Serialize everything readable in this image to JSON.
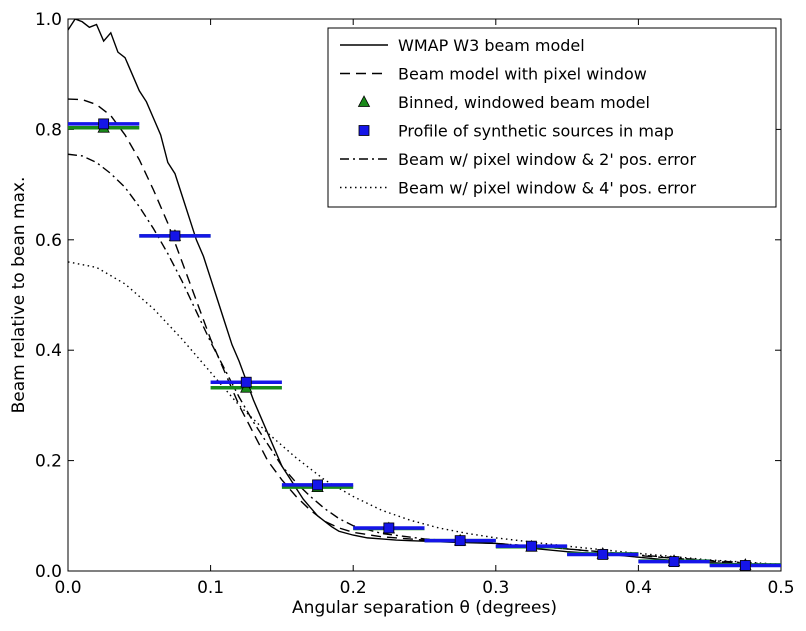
{
  "chart_data": {
    "type": "line",
    "xlabel": "Angular separation θ (degrees)",
    "ylabel": "Beam relative to bean max.",
    "xlim": [
      0.0,
      0.5
    ],
    "ylim": [
      0.0,
      1.0
    ],
    "xticks": [
      "0.0",
      "0.1",
      "0.2",
      "0.3",
      "0.4",
      "0.5"
    ],
    "yticks": [
      "0.0",
      "0.2",
      "0.4",
      "0.6",
      "0.8",
      "1.0"
    ],
    "grid": false,
    "legend_position": "top-right",
    "series": [
      {
        "name": "WMAP W3 beam model",
        "style": "solid",
        "x": [
          0,
          0.005,
          0.01,
          0.015,
          0.02,
          0.025,
          0.03,
          0.035,
          0.04,
          0.045,
          0.05,
          0.055,
          0.06,
          0.065,
          0.07,
          0.075,
          0.08,
          0.085,
          0.09,
          0.095,
          0.1,
          0.105,
          0.11,
          0.115,
          0.12,
          0.125,
          0.13,
          0.135,
          0.14,
          0.145,
          0.15,
          0.155,
          0.16,
          0.165,
          0.17,
          0.175,
          0.18,
          0.185,
          0.19,
          0.2,
          0.21,
          0.22,
          0.23,
          0.24,
          0.25,
          0.27,
          0.3,
          0.33,
          0.35,
          0.38,
          0.4,
          0.42,
          0.45,
          0.48,
          0.5
        ],
        "y": [
          0.98,
          1.0,
          0.995,
          0.985,
          0.99,
          0.96,
          0.975,
          0.94,
          0.93,
          0.9,
          0.87,
          0.85,
          0.82,
          0.79,
          0.74,
          0.72,
          0.68,
          0.64,
          0.6,
          0.57,
          0.53,
          0.49,
          0.45,
          0.41,
          0.38,
          0.345,
          0.31,
          0.28,
          0.25,
          0.22,
          0.19,
          0.17,
          0.15,
          0.13,
          0.115,
          0.1,
          0.09,
          0.08,
          0.072,
          0.065,
          0.06,
          0.058,
          0.056,
          0.055,
          0.054,
          0.052,
          0.05,
          0.04,
          0.035,
          0.03,
          0.025,
          0.02,
          0.015,
          0.012,
          0.01
        ]
      },
      {
        "name": "Beam model with pixel window",
        "style": "dashed",
        "x": [
          0,
          0.01,
          0.02,
          0.03,
          0.04,
          0.05,
          0.06,
          0.07,
          0.08,
          0.09,
          0.1,
          0.11,
          0.12,
          0.13,
          0.14,
          0.15,
          0.16,
          0.17,
          0.18,
          0.19,
          0.2,
          0.22,
          0.25,
          0.3,
          0.35,
          0.4,
          0.45,
          0.5
        ],
        "y": [
          0.855,
          0.854,
          0.845,
          0.825,
          0.79,
          0.745,
          0.69,
          0.63,
          0.56,
          0.49,
          0.42,
          0.36,
          0.3,
          0.25,
          0.2,
          0.165,
          0.135,
          0.11,
          0.09,
          0.078,
          0.07,
          0.062,
          0.056,
          0.05,
          0.04,
          0.028,
          0.018,
          0.01
        ]
      },
      {
        "name": "Beam w/ pixel window & 2' pos. error",
        "style": "dashdot",
        "x": [
          0,
          0.01,
          0.02,
          0.03,
          0.04,
          0.05,
          0.06,
          0.07,
          0.08,
          0.09,
          0.1,
          0.11,
          0.12,
          0.13,
          0.14,
          0.15,
          0.16,
          0.17,
          0.18,
          0.19,
          0.2,
          0.22,
          0.25,
          0.3,
          0.35,
          0.4,
          0.45,
          0.5
        ],
        "y": [
          0.755,
          0.752,
          0.74,
          0.72,
          0.695,
          0.66,
          0.62,
          0.575,
          0.525,
          0.47,
          0.415,
          0.365,
          0.315,
          0.27,
          0.23,
          0.19,
          0.16,
          0.135,
          0.113,
          0.095,
          0.082,
          0.068,
          0.058,
          0.05,
          0.04,
          0.029,
          0.019,
          0.011
        ]
      },
      {
        "name": "Beam  w/ pixel window & 4' pos. error",
        "style": "dotted",
        "x": [
          0,
          0.02,
          0.04,
          0.06,
          0.08,
          0.1,
          0.12,
          0.14,
          0.16,
          0.18,
          0.2,
          0.22,
          0.24,
          0.26,
          0.28,
          0.3,
          0.35,
          0.4,
          0.45,
          0.5
        ],
        "y": [
          0.56,
          0.55,
          0.52,
          0.475,
          0.42,
          0.36,
          0.3,
          0.25,
          0.205,
          0.165,
          0.135,
          0.11,
          0.092,
          0.078,
          0.068,
          0.06,
          0.045,
          0.032,
          0.02,
          0.012
        ]
      },
      {
        "name": "Binned, windowed beam model",
        "marker": "triangle",
        "color": "#1a8a1a",
        "x": [
          0.025,
          0.075,
          0.125,
          0.175,
          0.225,
          0.275,
          0.325,
          0.375,
          0.425,
          0.475
        ],
        "y": [
          0.803,
          0.607,
          0.332,
          0.152,
          0.077,
          0.055,
          0.044,
          0.031,
          0.018,
          0.011
        ],
        "xerr": 0.025
      },
      {
        "name": "Profile of synthetic sources in map",
        "marker": "square",
        "color": "#1515e8",
        "x": [
          0.025,
          0.075,
          0.125,
          0.175,
          0.225,
          0.275,
          0.325,
          0.375,
          0.425,
          0.475
        ],
        "y": [
          0.81,
          0.607,
          0.342,
          0.156,
          0.078,
          0.055,
          0.045,
          0.03,
          0.017,
          0.01
        ],
        "xerr": 0.025
      }
    ],
    "legend": [
      "WMAP W3 beam model",
      "Beam model with pixel window",
      "Binned, windowed beam model",
      "Profile of synthetic sources in map",
      "Beam w/ pixel window & 2' pos. error",
      "Beam  w/ pixel window & 4' pos. error"
    ]
  }
}
